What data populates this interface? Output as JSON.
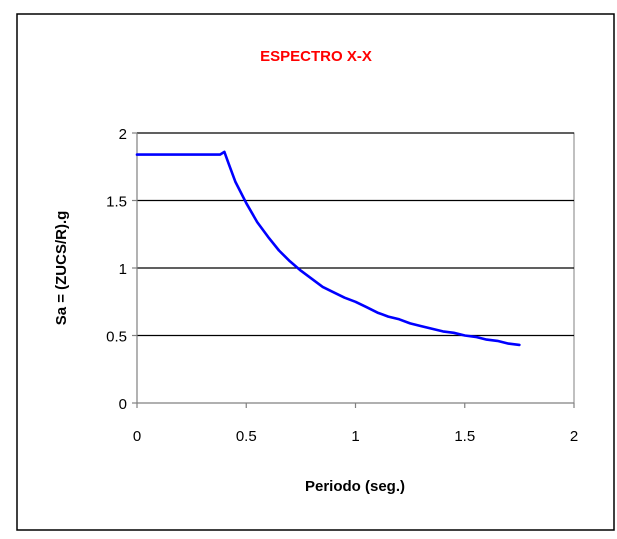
{
  "chart_data": {
    "type": "line",
    "title": "ESPECTRO X-X",
    "xlabel": "Periodo (seg.)",
    "ylabel": "Sa = (ZUCS/R).g",
    "xlim": [
      0,
      2
    ],
    "ylim": [
      0,
      2
    ],
    "x_ticks": [
      0,
      0.5,
      1,
      1.5,
      2
    ],
    "x_tick_labels": [
      "0",
      "0.5",
      "1",
      "1.5",
      "2"
    ],
    "y_ticks": [
      0,
      0.5,
      1,
      1.5,
      2
    ],
    "y_tick_labels": [
      "0",
      "0.5",
      "1",
      "1.5",
      "2"
    ],
    "horizontal_gridlines": true,
    "legend": "none",
    "series": [
      {
        "x": [
          0,
          0.05,
          0.1,
          0.15,
          0.2,
          0.25,
          0.3,
          0.35,
          0.38,
          0.4,
          0.42,
          0.45,
          0.5,
          0.55,
          0.6,
          0.65,
          0.7,
          0.75,
          0.8,
          0.85,
          0.9,
          0.95,
          1.0,
          1.05,
          1.1,
          1.15,
          1.2,
          1.25,
          1.3,
          1.35,
          1.4,
          1.45,
          1.5,
          1.55,
          1.6,
          1.65,
          1.7,
          1.75
        ],
        "y": [
          1.84,
          1.84,
          1.84,
          1.84,
          1.84,
          1.84,
          1.84,
          1.84,
          1.84,
          1.86,
          1.77,
          1.64,
          1.48,
          1.34,
          1.23,
          1.13,
          1.05,
          0.98,
          0.92,
          0.86,
          0.82,
          0.78,
          0.75,
          0.71,
          0.67,
          0.64,
          0.62,
          0.59,
          0.57,
          0.55,
          0.53,
          0.52,
          0.5,
          0.49,
          0.47,
          0.46,
          0.44,
          0.43
        ]
      }
    ]
  },
  "colors": {
    "title": "#ff0000",
    "line": "#0000ff",
    "plot_background": "#ffffff",
    "gridline": "#000000",
    "axis": "#808080"
  }
}
